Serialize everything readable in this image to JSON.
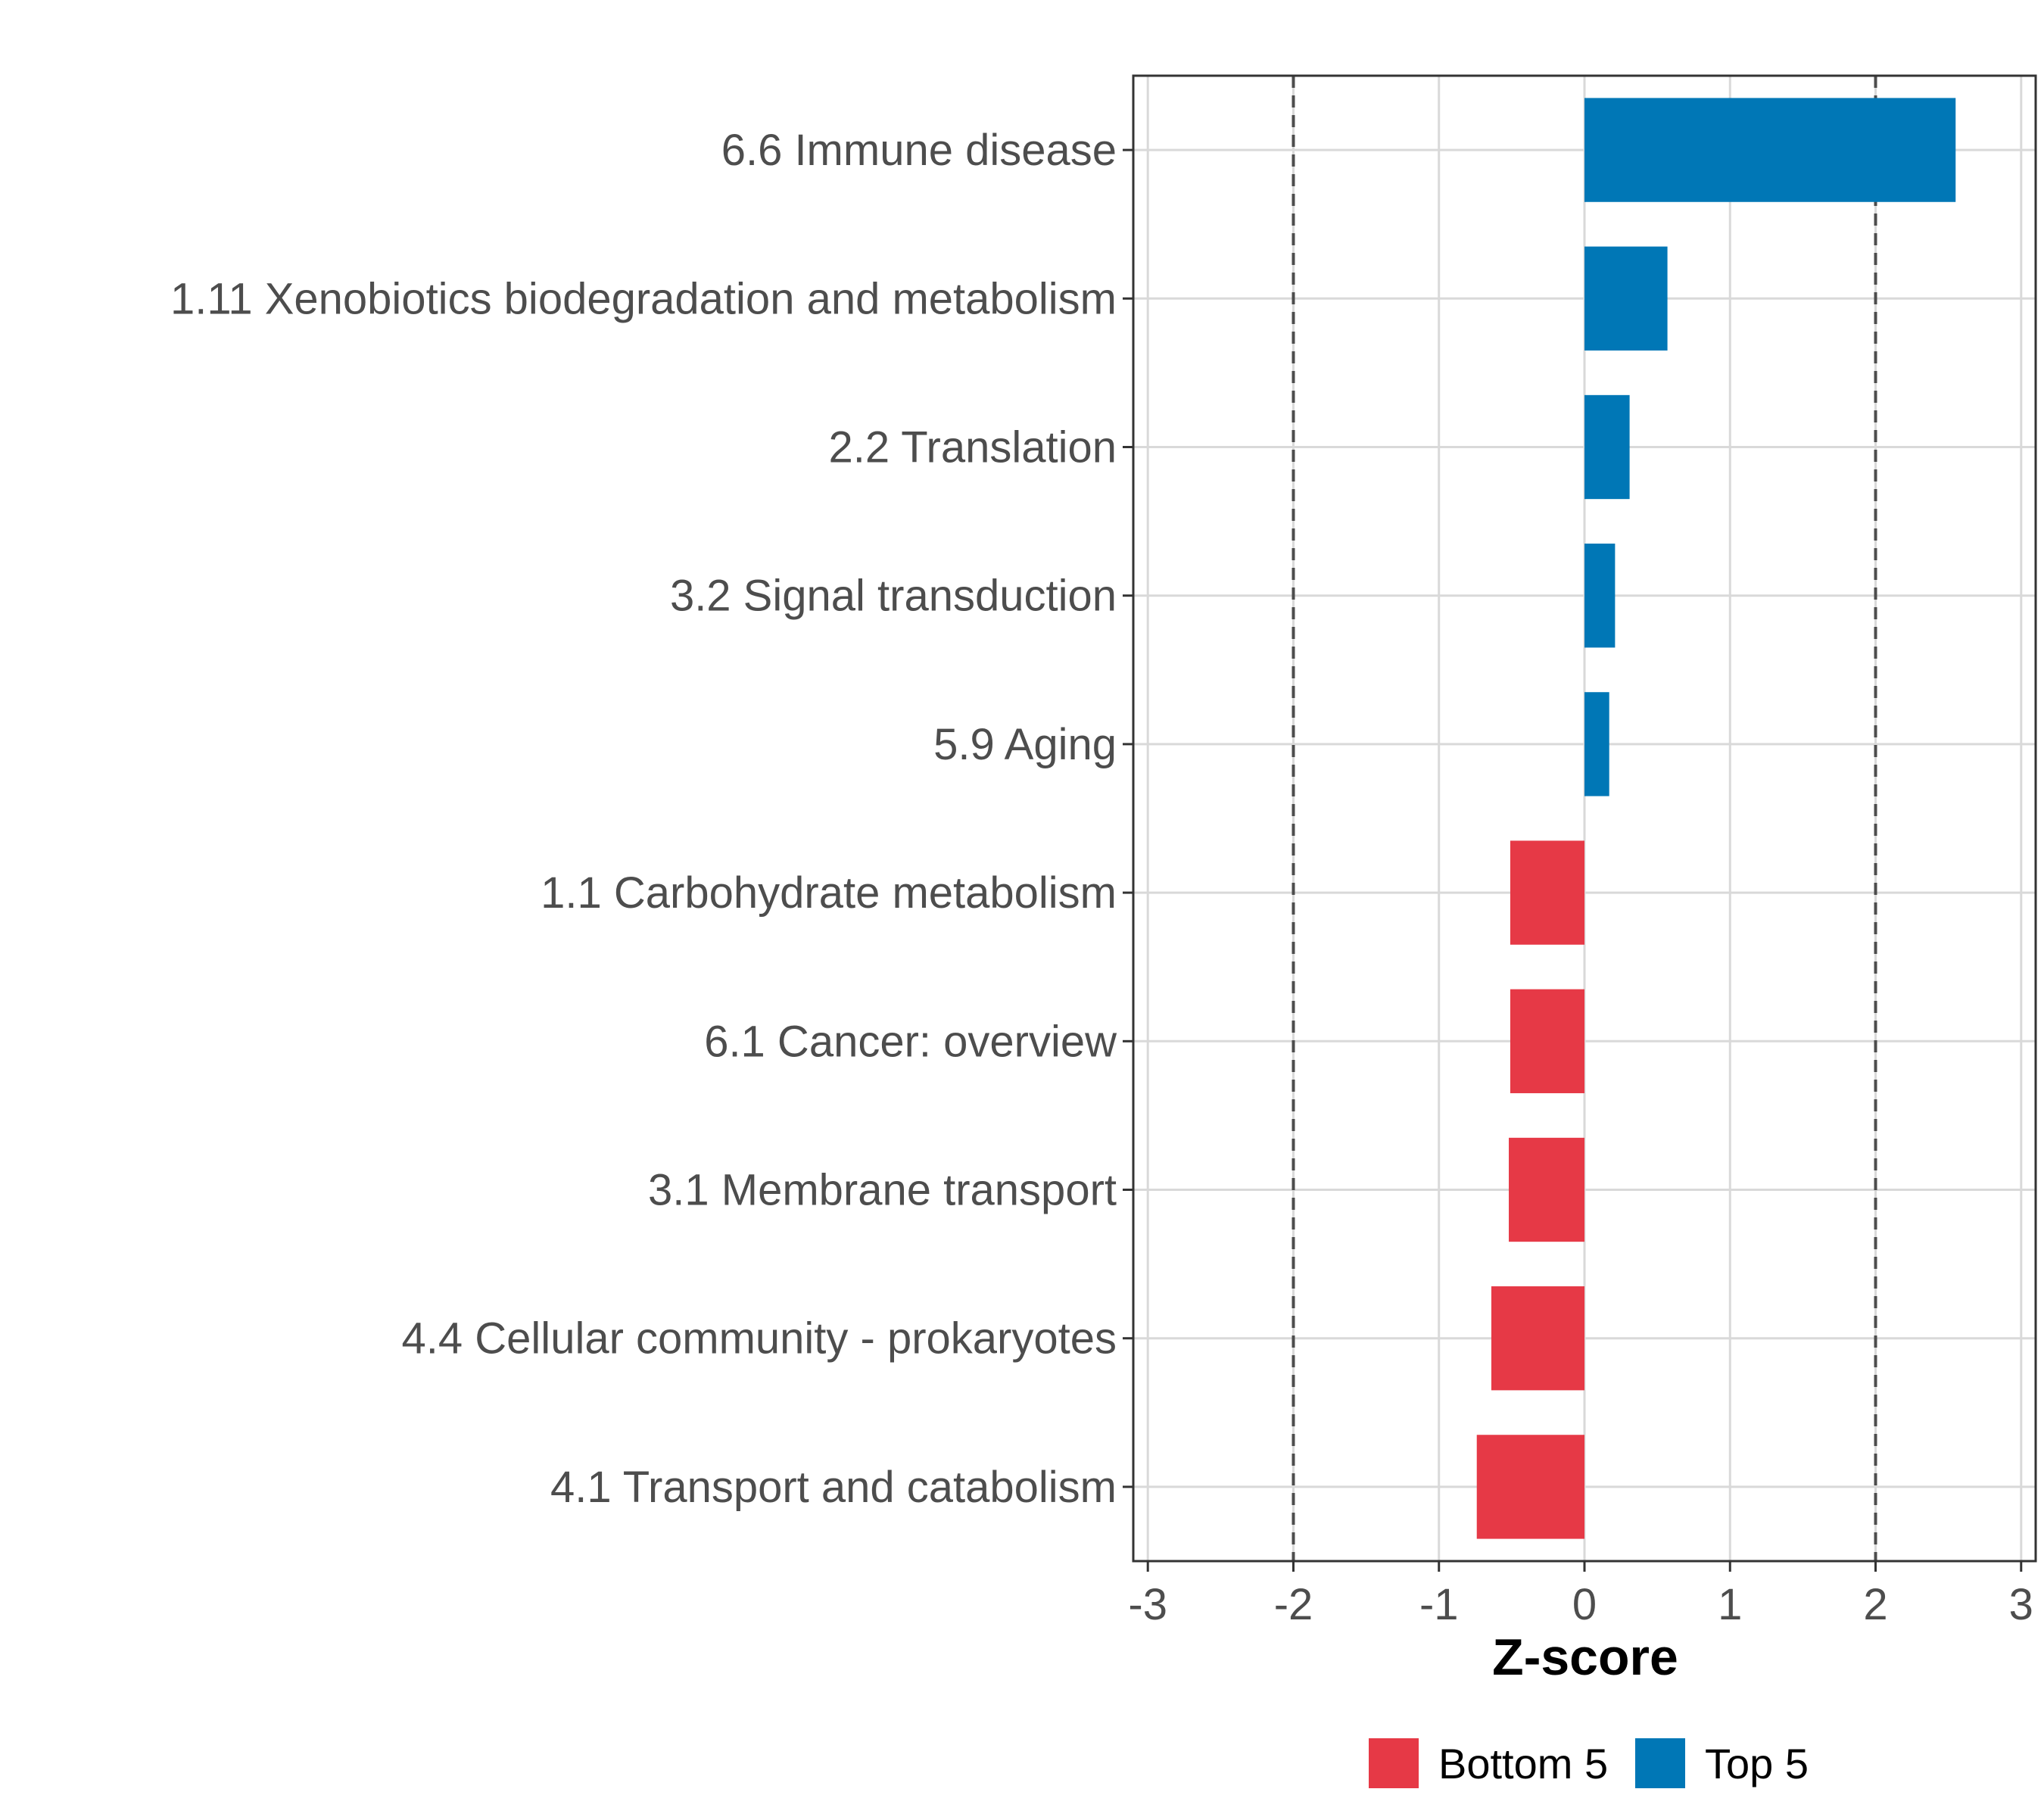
{
  "chart_data": {
    "type": "bar",
    "orientation": "horizontal",
    "xlabel": "Z-score",
    "ylabel": "",
    "xlim": [
      -3.1,
      3.1
    ],
    "x_ticks": [
      "-3",
      "-2",
      "-1",
      "0",
      "1",
      "2",
      "3"
    ],
    "x_tick_values": [
      -3,
      -2,
      -1,
      0,
      1,
      2,
      3
    ],
    "reference_lines": [
      -2,
      2
    ],
    "grid": true,
    "legend_position": "bottom",
    "categories": [
      "6.6 Immune disease",
      "1.11 Xenobiotics biodegradation and metabolism",
      "2.2 Translation",
      "3.2 Signal transduction",
      "5.9 Aging",
      "1.1 Carbohydrate metabolism",
      "6.1 Cancer: overview",
      "3.1 Membrane transport",
      "4.4 Cellular community - prokaryotes",
      "4.1 Transport and catabolism"
    ],
    "values": [
      2.55,
      0.57,
      0.31,
      0.21,
      0.17,
      -0.51,
      -0.51,
      -0.52,
      -0.64,
      -0.74
    ],
    "groups": [
      "Top 5",
      "Top 5",
      "Top 5",
      "Top 5",
      "Top 5",
      "Bottom 5",
      "Bottom 5",
      "Bottom 5",
      "Bottom 5",
      "Bottom 5"
    ],
    "legend": [
      {
        "name": "Bottom 5",
        "color": "#e63946"
      },
      {
        "name": "Top 5",
        "color": "#0077b6"
      }
    ]
  }
}
